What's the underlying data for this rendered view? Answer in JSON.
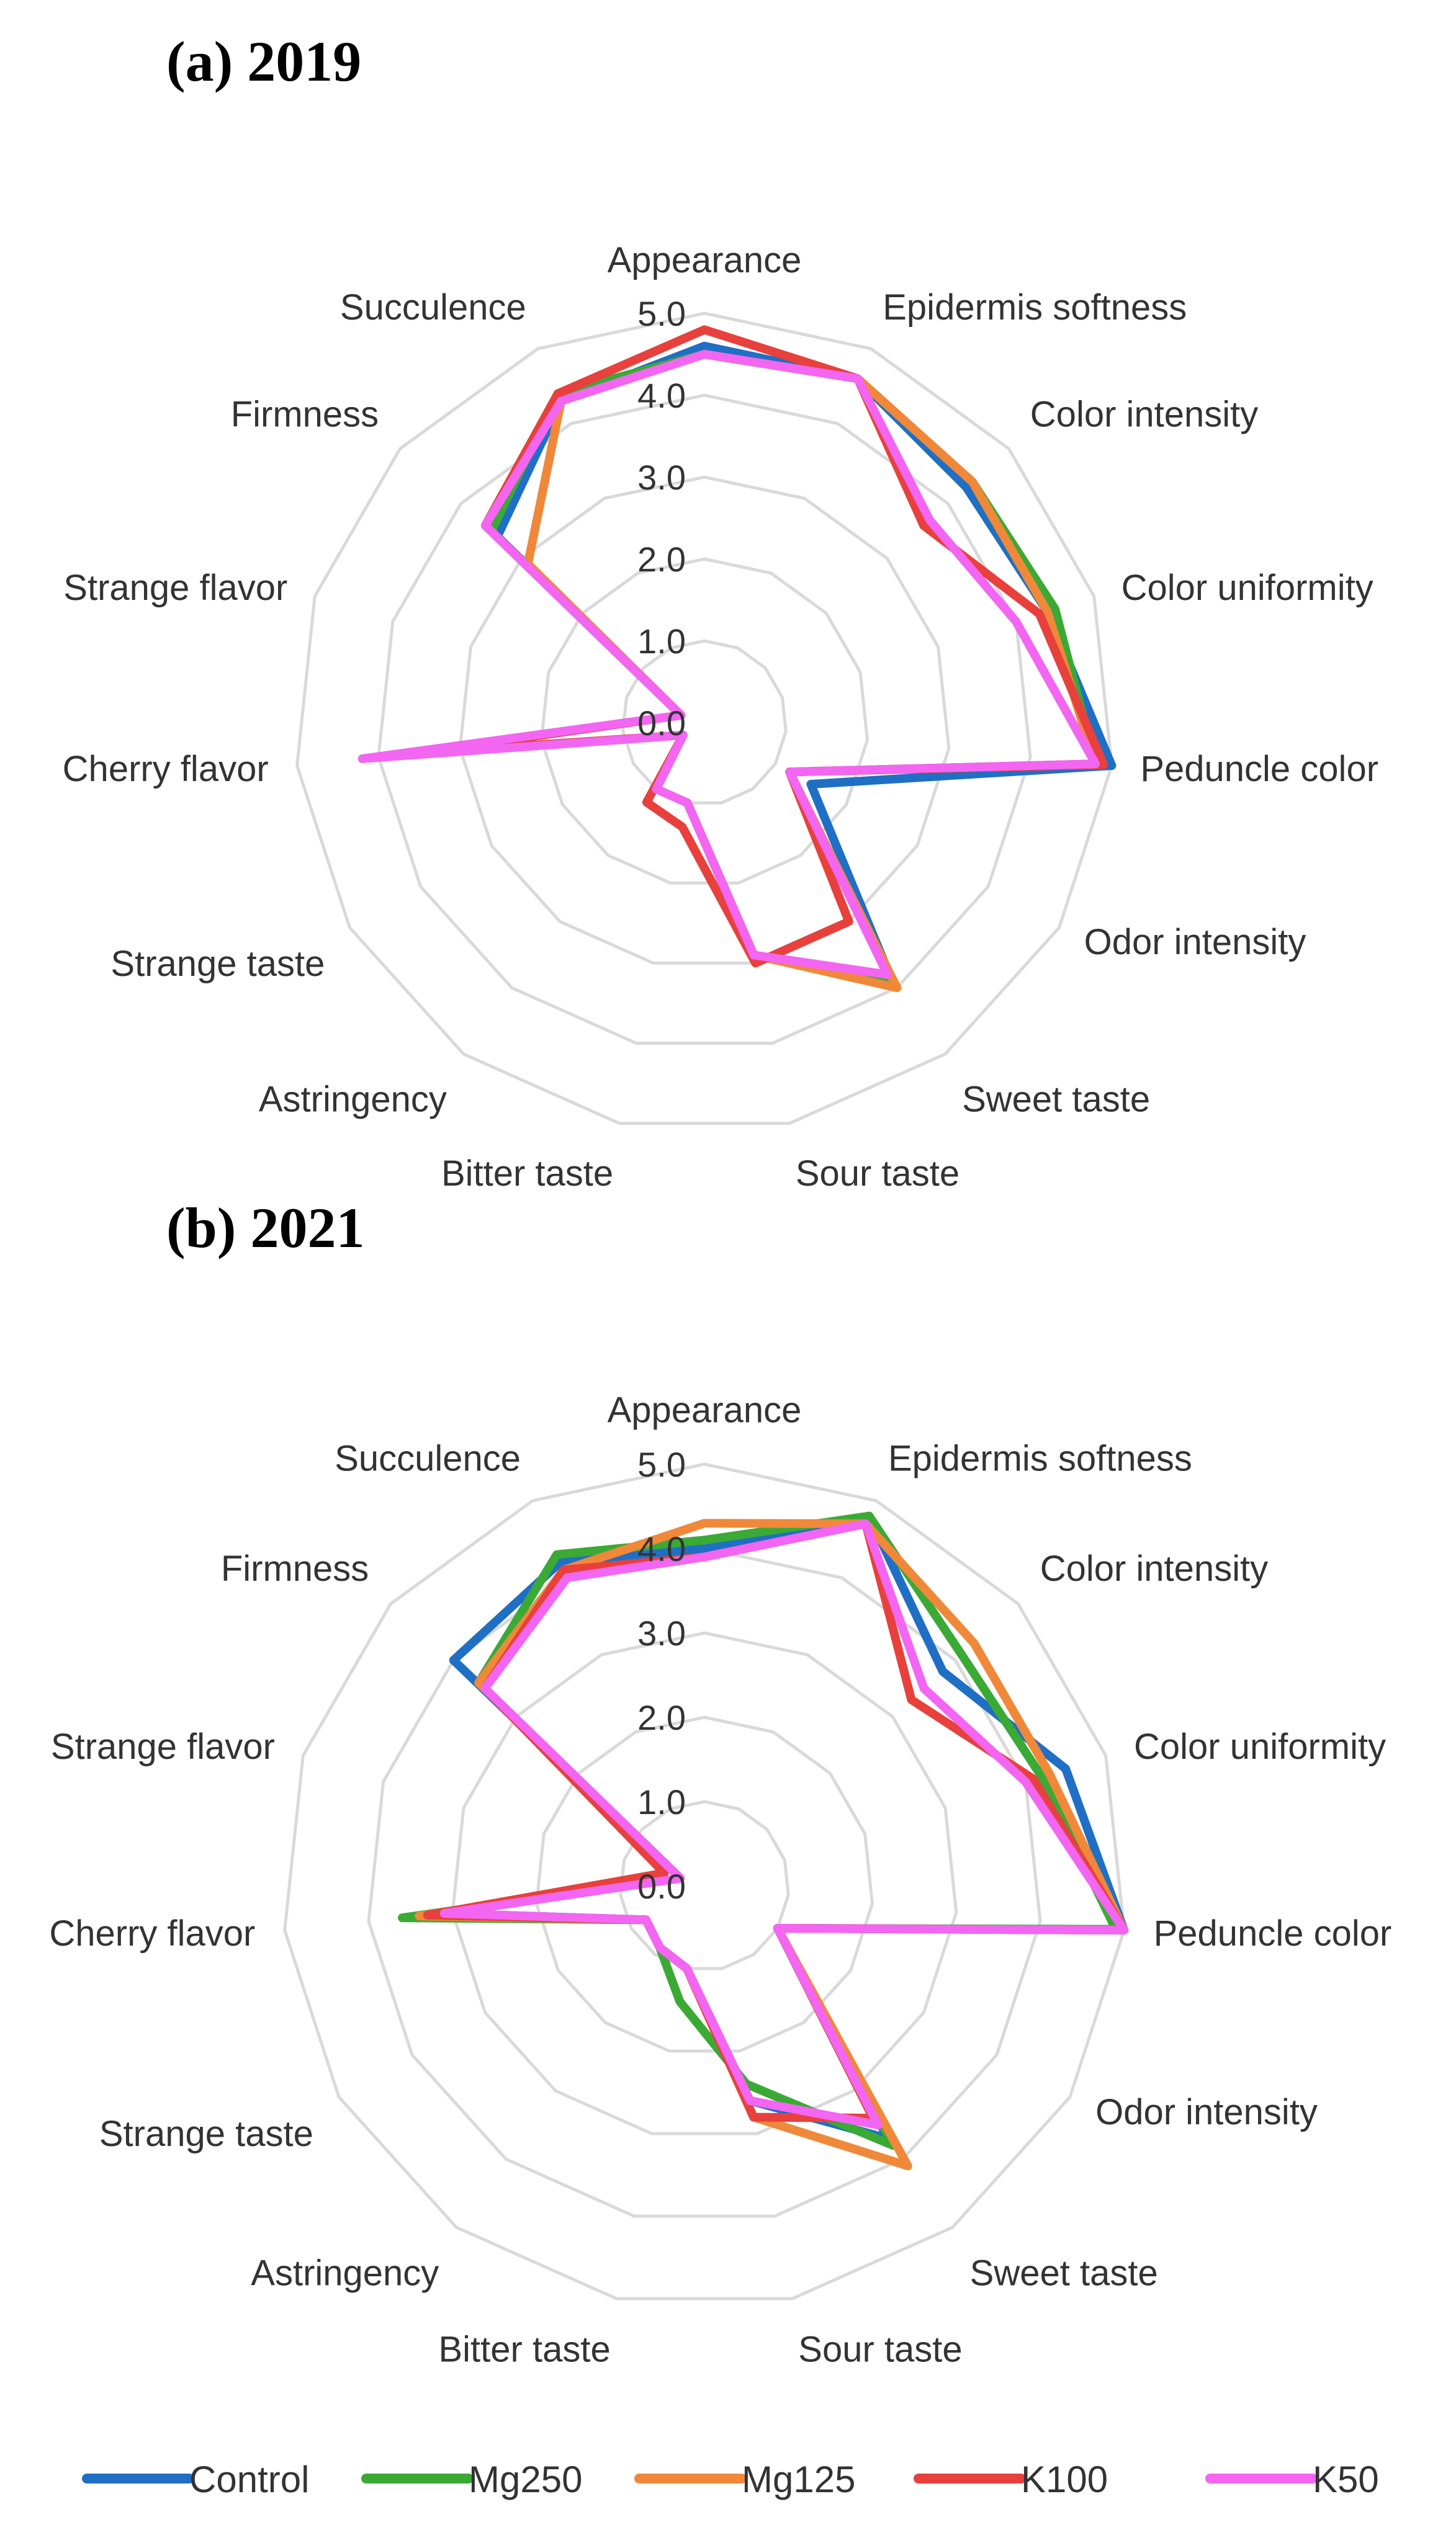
{
  "chart_data": [
    {
      "type": "radar",
      "title": "(a) 2019",
      "axes": [
        "Appearance",
        "Epidermis softness",
        "Color intensity",
        "Color uniformity",
        "Peduncle color",
        "Odor intensity",
        "Sweet taste",
        "Sour taste",
        "Bitter taste",
        "Astringency",
        "Strange taste",
        "Cherry flavor",
        "Strange flavor",
        "Firmness",
        "Succulence"
      ],
      "ticks": [
        "0.0",
        "1.0",
        "2.0",
        "3.0",
        "4.0",
        "5.0"
      ],
      "rlim": [
        0,
        5
      ],
      "series": [
        {
          "name": "Control",
          "color": "#1f6fc5",
          "values": [
            4.6,
            4.6,
            4.3,
            4.4,
            5.0,
            1.5,
            3.9,
            2.9,
            1.0,
            1.0,
            0.3,
            4.0,
            0.3,
            3.4,
            4.3
          ]
        },
        {
          "name": "Mg250",
          "color": "#3aaa35",
          "values": [
            4.5,
            4.6,
            4.4,
            4.5,
            4.8,
            1.2,
            3.9,
            2.9,
            1.0,
            1.0,
            0.3,
            4.0,
            0.3,
            3.5,
            4.4
          ]
        },
        {
          "name": "Mg125",
          "color": "#f0883a",
          "values": [
            4.5,
            4.6,
            4.4,
            4.4,
            4.8,
            1.2,
            4.0,
            2.9,
            1.0,
            1.0,
            0.3,
            4.0,
            0.3,
            2.9,
            4.3
          ]
        },
        {
          "name": "K100",
          "color": "#e8403c",
          "values": [
            4.8,
            4.6,
            3.6,
            4.3,
            4.9,
            1.2,
            3.0,
            3.0,
            1.3,
            1.2,
            0.3,
            3.5,
            0.3,
            3.6,
            4.4
          ]
        },
        {
          "name": "K50",
          "color": "#f266f2",
          "values": [
            4.5,
            4.6,
            3.7,
            4.0,
            4.8,
            1.2,
            3.8,
            2.9,
            1.0,
            1.0,
            0.3,
            4.2,
            0.3,
            3.6,
            4.3
          ]
        }
      ]
    },
    {
      "type": "radar",
      "title": "(b) 2021",
      "axes": [
        "Appearance",
        "Epidermis softness",
        "Color intensity",
        "Color uniformity",
        "Peduncle color",
        "Odor intensity",
        "Sweet taste",
        "Sour taste",
        "Bitter taste",
        "Astringency",
        "Strange taste",
        "Cherry flavor",
        "Strange flavor",
        "Firmness",
        "Succulence"
      ],
      "ticks": [
        "0.0",
        "1.0",
        "2.0",
        "3.0",
        "4.0",
        "5.0"
      ],
      "rlim": [
        0,
        5
      ],
      "series": [
        {
          "name": "Control",
          "color": "#1f6fc5",
          "values": [
            4.0,
            4.8,
            3.8,
            4.5,
            5.0,
            1.0,
            3.7,
            2.6,
            1.0,
            0.9,
            0.8,
            3.1,
            0.3,
            4.0,
            4.2
          ]
        },
        {
          "name": "Mg250",
          "color": "#3aaa35",
          "values": [
            4.1,
            4.8,
            4.1,
            4.2,
            4.9,
            1.0,
            3.8,
            2.4,
            1.4,
            0.9,
            0.8,
            3.6,
            0.3,
            3.6,
            4.3
          ]
        },
        {
          "name": "Mg125",
          "color": "#f0883a",
          "values": [
            4.3,
            4.7,
            4.3,
            4.3,
            5.0,
            1.0,
            4.1,
            2.8,
            1.0,
            0.9,
            0.8,
            3.4,
            0.3,
            3.6,
            4.1
          ]
        },
        {
          "name": "K100",
          "color": "#e8403c",
          "values": [
            3.9,
            4.7,
            3.3,
            4.1,
            5.0,
            1.0,
            3.4,
            2.8,
            1.0,
            0.9,
            0.8,
            3.3,
            0.5,
            3.5,
            4.1
          ]
        },
        {
          "name": "K50",
          "color": "#f266f2",
          "values": [
            3.9,
            4.7,
            3.5,
            4.0,
            5.0,
            1.0,
            3.5,
            2.6,
            1.0,
            0.9,
            0.8,
            3.1,
            0.3,
            3.5,
            4.0
          ]
        }
      ]
    }
  ]
}
